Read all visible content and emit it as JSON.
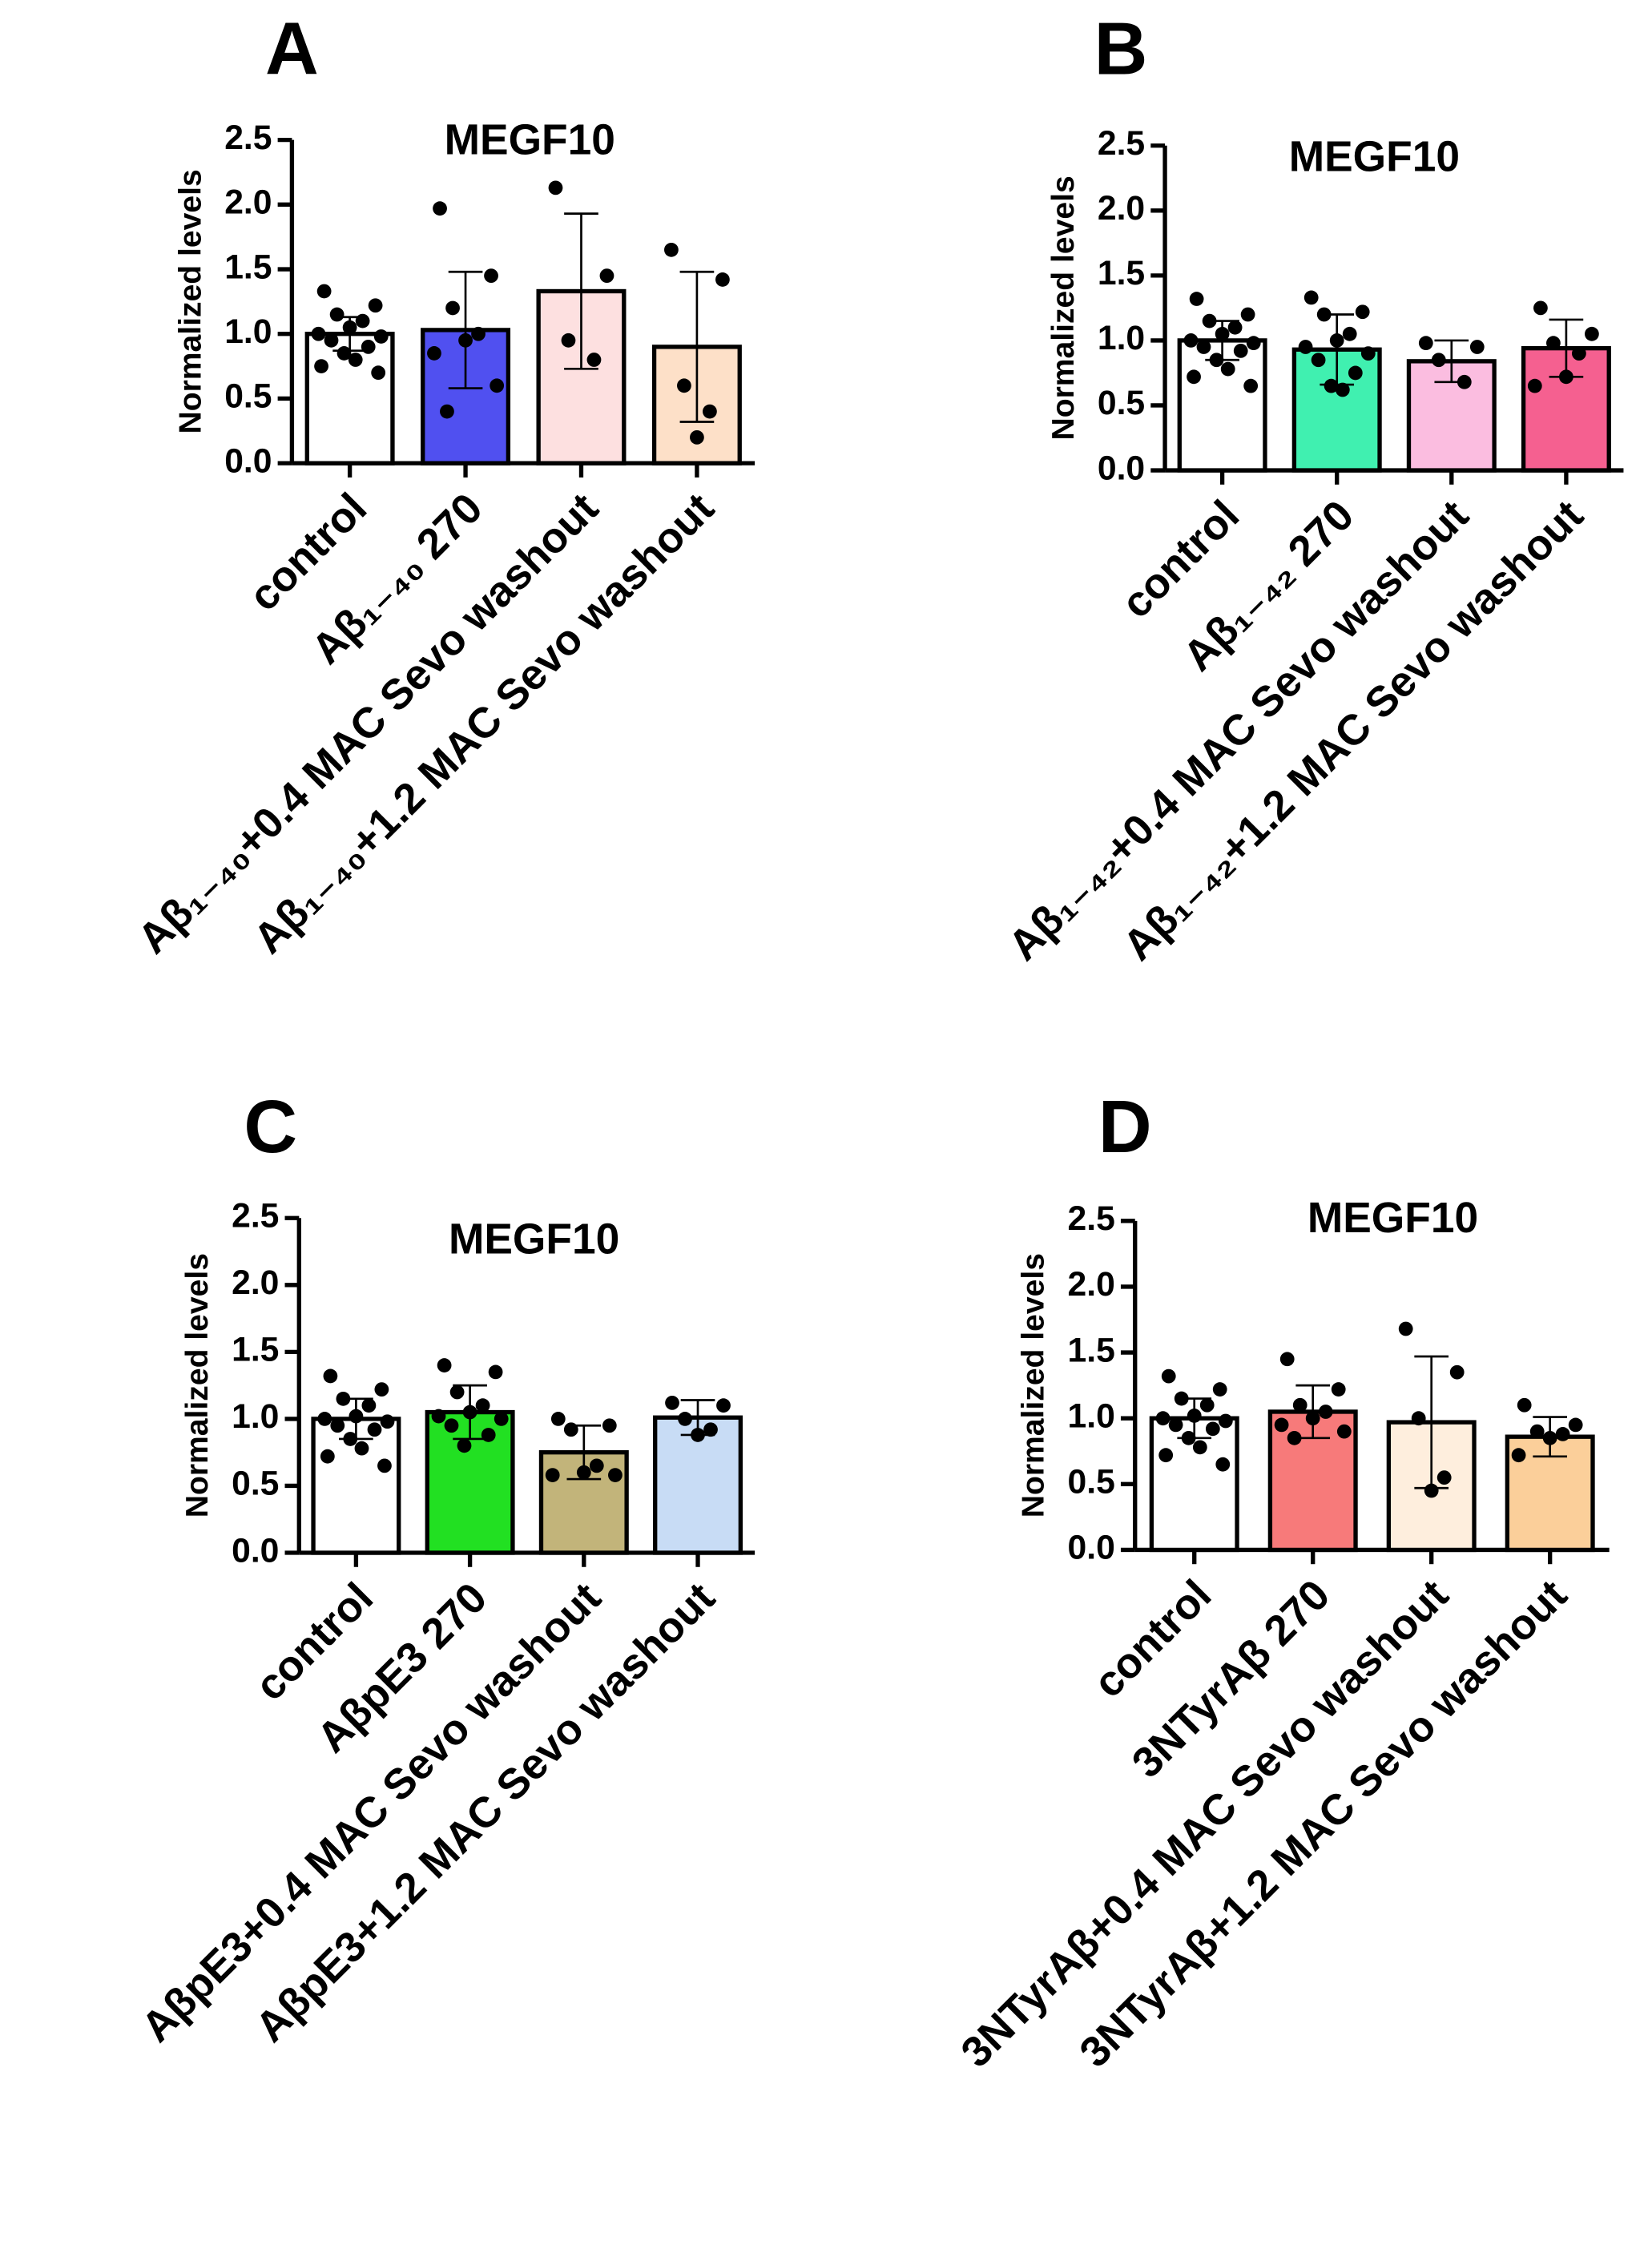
{
  "chart_data": [
    {
      "type": "bar",
      "panel": "A",
      "title": "MEGF10",
      "y_label": "Normalized  levels",
      "categories": [
        "control",
        "Aβ₁₋₄₀ 270",
        "Aβ₁₋₄₀+0.4 MAC Sevo  washout",
        "Aβ₁₋₄₀+1.2 MAC Sevo  washout"
      ],
      "values": [
        1.0,
        1.03,
        1.33,
        0.9
      ],
      "errors": [
        0.13,
        0.45,
        0.6,
        0.58
      ],
      "colors": [
        "#ffffff",
        "#5050f0",
        "#fde0e0",
        "#fde0c8"
      ],
      "points": [
        [
          1.33,
          1.22,
          1.15,
          1.1,
          1.05,
          1.0,
          0.98,
          0.95,
          0.9,
          0.85,
          0.8,
          0.75,
          0.7
        ],
        [
          1.97,
          1.45,
          1.2,
          1.0,
          0.95,
          0.85,
          0.6,
          0.4
        ],
        [
          2.13,
          1.45,
          0.95,
          0.8
        ],
        [
          1.65,
          1.42,
          0.6,
          0.4,
          0.2
        ]
      ],
      "ylim": [
        0,
        2.5
      ],
      "yticks": [
        {
          "value": 0,
          "label": "0.0"
        },
        {
          "value": 0.5,
          "label": "0.5"
        },
        {
          "value": 1,
          "label": "1.0"
        },
        {
          "value": 1.5,
          "label": "1.5"
        },
        {
          "value": 2,
          "label": "2.0"
        },
        {
          "value": 2.5,
          "label": "2.5"
        }
      ]
    },
    {
      "type": "bar",
      "panel": "B",
      "title": "MEGF10",
      "y_label": "Normalized  levels",
      "categories": [
        "control",
        "Aβ₁₋₄₂ 270",
        "Aβ₁₋₄₂+0.4 MAC Sevo  washout",
        "Aβ₁₋₄₂+1.2 MAC Sevo  washout"
      ],
      "values": [
        1.0,
        0.93,
        0.84,
        0.94
      ],
      "errors": [
        0.15,
        0.27,
        0.16,
        0.22
      ],
      "colors": [
        "#ffffff",
        "#40f0b0",
        "#fbbde0",
        "#f56090"
      ],
      "points": [
        [
          1.32,
          1.2,
          1.15,
          1.1,
          1.05,
          1.0,
          0.98,
          0.95,
          0.92,
          0.85,
          0.78,
          0.72,
          0.65
        ],
        [
          1.33,
          1.22,
          1.2,
          1.05,
          1.0,
          0.95,
          0.9,
          0.85,
          0.75,
          0.65,
          0.62
        ],
        [
          0.98,
          0.95,
          0.85,
          0.68
        ],
        [
          1.25,
          1.05,
          0.98,
          0.9,
          0.72,
          0.65
        ]
      ],
      "ylim": [
        0,
        2.5
      ],
      "yticks": [
        {
          "value": 0,
          "label": "0.0"
        },
        {
          "value": 0.5,
          "label": "0.5"
        },
        {
          "value": 1,
          "label": "1.0"
        },
        {
          "value": 1.5,
          "label": "1.5"
        },
        {
          "value": 2,
          "label": "2.0"
        },
        {
          "value": 2.5,
          "label": "2.5"
        }
      ]
    },
    {
      "type": "bar",
      "panel": "C",
      "title": "MEGF10",
      "y_label": "Normalized  levels",
      "categories": [
        "control",
        "AβpE3 270",
        "AβpE3+0.4 MAC Sevo  washout",
        "AβpE3+1.2 MAC Sevo  washout"
      ],
      "values": [
        1.0,
        1.05,
        0.75,
        1.01
      ],
      "errors": [
        0.15,
        0.2,
        0.2,
        0.13
      ],
      "colors": [
        "#ffffff",
        "#22e022",
        "#c2b47a",
        "#c8dcf5"
      ],
      "points": [
        [
          1.32,
          1.22,
          1.15,
          1.1,
          1.02,
          1.0,
          0.98,
          0.95,
          0.92,
          0.85,
          0.78,
          0.72,
          0.65
        ],
        [
          1.4,
          1.35,
          1.2,
          1.1,
          1.05,
          1.02,
          1.0,
          0.95,
          0.88,
          0.8
        ],
        [
          1.0,
          0.95,
          0.92,
          0.65,
          0.6,
          0.58,
          0.58
        ],
        [
          1.12,
          1.1,
          1.0,
          0.92,
          0.88
        ]
      ],
      "ylim": [
        0,
        2.5
      ],
      "yticks": [
        {
          "value": 0,
          "label": "0.0"
        },
        {
          "value": 0.5,
          "label": "0.5"
        },
        {
          "value": 1,
          "label": "1.0"
        },
        {
          "value": 1.5,
          "label": "1.5"
        },
        {
          "value": 2,
          "label": "2.0"
        },
        {
          "value": 2.5,
          "label": "2.5"
        }
      ]
    },
    {
      "type": "bar",
      "panel": "D",
      "title": "MEGF10",
      "y_label": "Normalized levels",
      "categories": [
        "control",
        "3NTyrAβ 270",
        "3NTyrAβ+0.4 MAC Sevo  washout",
        "3NTyrAβ+1.2 MAC Sevo  washout"
      ],
      "values": [
        1.0,
        1.05,
        0.97,
        0.86
      ],
      "errors": [
        0.15,
        0.2,
        0.5,
        0.15
      ],
      "colors": [
        "#ffffff",
        "#f77a7a",
        "#feeedd",
        "#fbcf9a"
      ],
      "points": [
        [
          1.32,
          1.22,
          1.15,
          1.1,
          1.02,
          1.0,
          0.98,
          0.95,
          0.92,
          0.85,
          0.78,
          0.72,
          0.65
        ],
        [
          1.45,
          1.22,
          1.1,
          1.05,
          1.0,
          0.95,
          0.9,
          0.85
        ],
        [
          1.68,
          1.35,
          1.0,
          0.55,
          0.45
        ],
        [
          1.1,
          0.95,
          0.9,
          0.88,
          0.85,
          0.72
        ]
      ],
      "ylim": [
        0,
        2.5
      ],
      "yticks": [
        {
          "value": 0,
          "label": "0.0"
        },
        {
          "value": 0.5,
          "label": "0.5"
        },
        {
          "value": 1,
          "label": "1.0"
        },
        {
          "value": 1.5,
          "label": "1.5"
        },
        {
          "value": 2,
          "label": "2.0"
        },
        {
          "value": 2.5,
          "label": "2.5"
        }
      ]
    }
  ]
}
